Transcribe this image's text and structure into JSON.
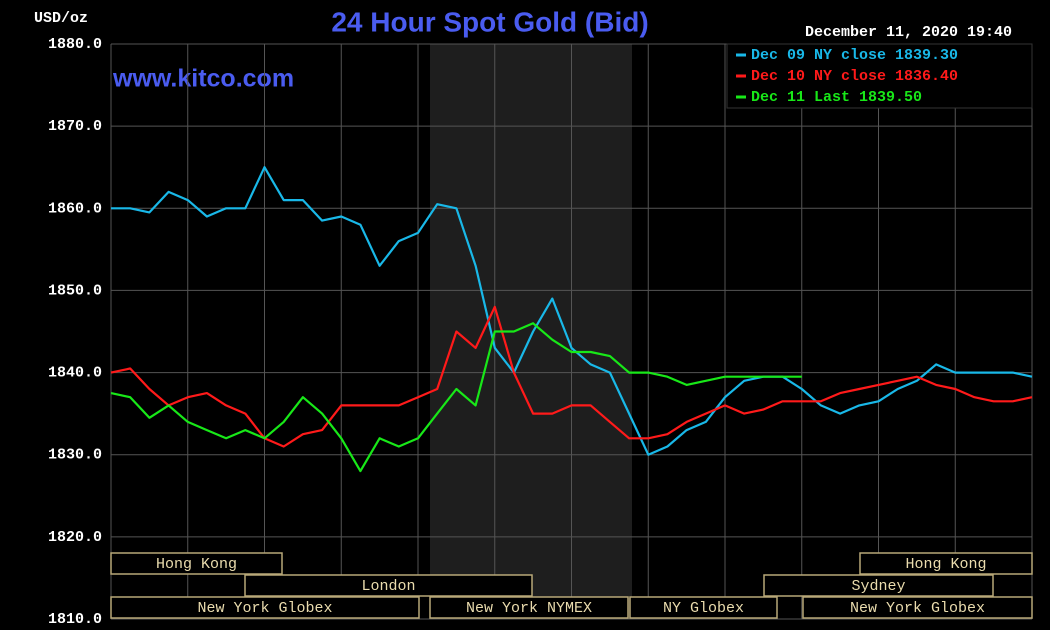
{
  "chart_data": {
    "type": "line",
    "title": "24 Hour Spot Gold (Bid)",
    "subtitle": "www.kitco.com",
    "y_label": "USD/oz",
    "date": "December 11, 2020 19:40",
    "ylim": [
      1810,
      1880
    ],
    "yticks": [
      {
        "value": 1810,
        "label": "1810.0"
      },
      {
        "value": 1820,
        "label": "1820.0"
      },
      {
        "value": 1830,
        "label": "1830.0"
      },
      {
        "value": 1840,
        "label": "1840.0"
      },
      {
        "value": 1850,
        "label": "1850.0"
      },
      {
        "value": 1860,
        "label": "1860.0"
      },
      {
        "value": 1870,
        "label": "1870.0"
      },
      {
        "value": 1880,
        "label": "1880.0"
      }
    ],
    "grid": true,
    "legend": "upper right",
    "series": [
      {
        "name": "Dec 09 NY close 1839.30",
        "color": "#19b8e8",
        "values": [
          1860,
          1860,
          1859.5,
          1862,
          1861,
          1859,
          1860,
          1860,
          1865,
          1861,
          1861,
          1858.5,
          1859,
          1858,
          1853,
          1856,
          1857,
          1860.5,
          1860,
          1853,
          1843,
          1840,
          1845,
          1849,
          1843,
          1841,
          1840,
          1835,
          1830,
          1831,
          1833,
          1834,
          1837,
          1839,
          1839.5,
          1839.5,
          1838,
          1836,
          1835,
          1836,
          1836.5,
          1838,
          1839,
          1841,
          1840,
          1840,
          1840,
          1840,
          1839.5
        ]
      },
      {
        "name": "Dec 10 NY close 1836.40",
        "color": "#ff1a1a",
        "values": [
          1840,
          1840.5,
          1838,
          1836,
          1837,
          1837.5,
          1836,
          1835,
          1832,
          1831,
          1832.5,
          1833,
          1836,
          1836,
          1836,
          1836,
          1837,
          1838,
          1845,
          1843,
          1848,
          1840,
          1835,
          1835,
          1836,
          1836,
          1834,
          1832,
          1832,
          1832.5,
          1834,
          1835,
          1836,
          1835,
          1835.5,
          1836.5,
          1836.5,
          1836.5,
          1837.5,
          1838,
          1838.5,
          1839,
          1839.5,
          1838.5,
          1838,
          1837,
          1836.5,
          1836.5,
          1837
        ]
      },
      {
        "name": "Dec 11 Last 1839.50",
        "color": "#18e818",
        "values": [
          1837.5,
          1837,
          1834.5,
          1836,
          1834,
          1833,
          1832,
          1833,
          1832,
          1834,
          1837,
          1835,
          1832,
          1828,
          1832,
          1831,
          1832,
          1835,
          1838,
          1836,
          1845,
          1845,
          1846,
          1844,
          1842.5,
          1842.5,
          1842,
          1840,
          1840,
          1839.5,
          1838.5,
          1839,
          1839.5,
          1839.5,
          1839.5,
          1839.5,
          1839.5,
          null,
          null,
          null,
          null,
          null,
          null,
          null,
          null,
          null,
          null,
          null,
          null
        ]
      }
    ],
    "sessions": [
      "Hong Kong",
      "Hong Kong",
      "London",
      "Sydney",
      "New York Globex",
      "New York NYMEX",
      "NY Globex",
      "New York Globex"
    ]
  }
}
